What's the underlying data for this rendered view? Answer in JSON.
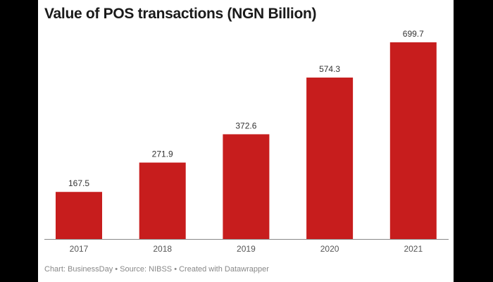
{
  "title": "Value of POS transactions (NGN Billion)",
  "footer": "Chart: BusinessDay • Source: NIBSS • Created with Datawrapper",
  "chart_data": {
    "type": "bar",
    "title": "Value of POS transactions (NGN Billion)",
    "categories": [
      "2017",
      "2018",
      "2019",
      "2020",
      "2021"
    ],
    "values": [
      167.5,
      271.9,
      372.6,
      574.3,
      699.7
    ],
    "data_labels": [
      "167.5",
      "271.9",
      "372.6",
      "574.3",
      "699.7"
    ],
    "xlabel": "",
    "ylabel": "",
    "ylim": [
      0,
      700
    ],
    "grid": false,
    "color": "#c71d1d"
  }
}
